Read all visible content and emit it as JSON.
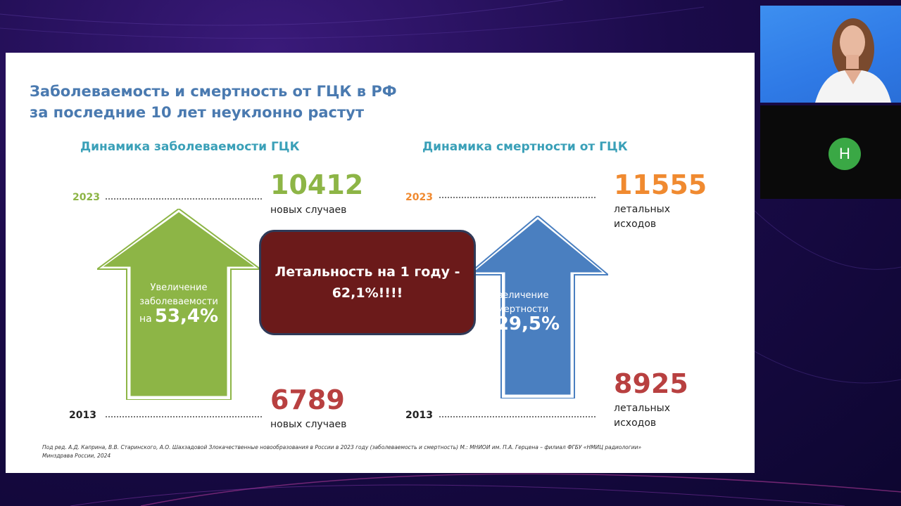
{
  "slide": {
    "title_line1": "Заболеваемость и смертность от ГЦК в РФ",
    "title_line2": "за последние 10 лет неуклонно растут",
    "left": {
      "heading": "Динамика заболеваемости ГЦК",
      "year_top": "2023",
      "year_bottom": "2013",
      "top_value": "10412",
      "top_caption": "новых случаев",
      "bottom_value": "6789",
      "bottom_caption": "новых случаев",
      "arrow_line1": "Увеличение",
      "arrow_line2": "заболеваемости",
      "arrow_prefix": "на",
      "arrow_pct": "53,4%"
    },
    "right": {
      "heading": "Динамика смертности от ГЦК",
      "year_top": "2023",
      "year_bottom": "2013",
      "top_value": "11555",
      "top_caption_line1": "летальных",
      "top_caption_line2": "исходов",
      "bottom_value": "8925",
      "bottom_caption_line1": "летальных",
      "bottom_caption_line2": "исходов",
      "arrow_line1": "Увеличение",
      "arrow_line2": "смертности",
      "arrow_prefix": "на",
      "arrow_pct": "29,5%"
    },
    "callout_line1": "Летальность на 1 году -",
    "callout_line2": "62,1%!!!!",
    "source_line1": "Под ред. А.Д. Каприна, В.В. Старинского, А.О. Шахзадовой Злокачественные новообразования в России в 2023 году (заболеваемость и смертность) М.: МНИОИ им. П.А. Герцена – филиал ФГБУ «НМИЦ радиологии»",
    "source_line2": "Минздрава России, 2024"
  },
  "participant": {
    "initial": "Н"
  },
  "colors": {
    "title": "#4a7ab0",
    "heading": "#3aa0b8",
    "green_arrow": "#8db546",
    "blue_arrow": "#4a7fc0",
    "callout": "#6b1a1a",
    "red_number": "#b84040",
    "orange_number": "#f08a30",
    "green_number": "#8db546",
    "avatar": "#3aa845"
  }
}
